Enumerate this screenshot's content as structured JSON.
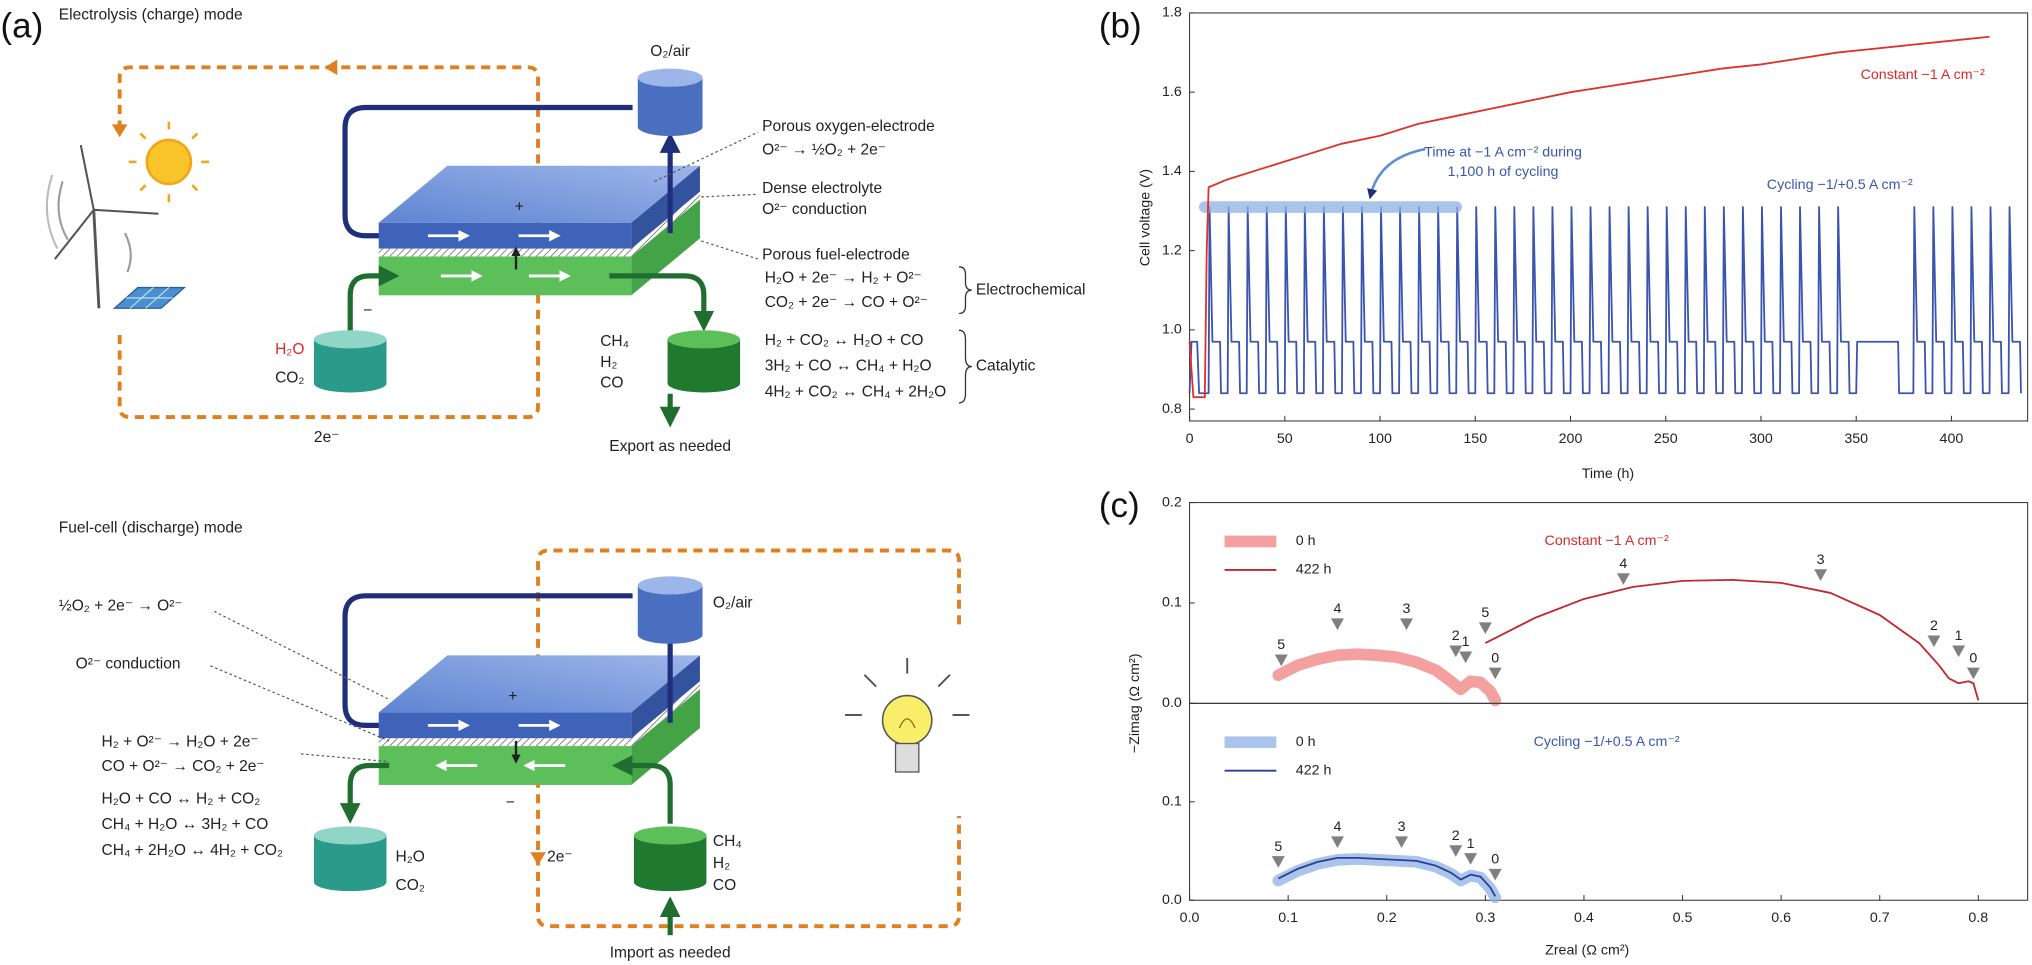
{
  "panel_labels": [
    "(a)",
    "(b)",
    "(c)"
  ],
  "electrolysis": {
    "title": "Electrolysis (charge) mode",
    "o2": "O₂/air",
    "oxygen_electrode": "Porous oxygen-electrode",
    "oxygen_reaction": "O²⁻ → ½O₂ + 2e⁻",
    "electrolyte": "Dense electrolyte",
    "conduction": "O²⁻ conduction",
    "fuel_electrode": "Porous fuel-electrode",
    "electrochemical": [
      "H₂O + 2e⁻ → H₂ + O²⁻",
      "CO₂ + 2e⁻ → CO + O²⁻"
    ],
    "electrochemical_label": "Electrochemical",
    "catalytic": [
      "H₂ + CO₂ ↔ H₂O + CO",
      "3H₂ + CO ↔ CH₄ + H₂O",
      "4H₂ + CO₂ ↔ CH₄ + 2H₂O"
    ],
    "catalytic_label": "Catalytic",
    "inputs": [
      "H₂O",
      "CO₂"
    ],
    "outputs": [
      "CH₄",
      "H₂",
      "CO"
    ],
    "export": "Export as needed",
    "electrons": "2e⁻",
    "plus": "+",
    "minus": "−"
  },
  "fuel_cell": {
    "title": "Fuel-cell (discharge) mode",
    "o2": "O₂/air",
    "reactions": [
      "½O₂ + 2e⁻ → O²⁻",
      "O²⁻ conduction",
      "H₂ + O²⁻ → H₂O + 2e⁻",
      "CO + O²⁻ → CO₂ + 2e⁻",
      "H₂O + CO ↔ H₂ + CO₂",
      "CH₄ + H₂O ↔ 3H₂ + CO",
      "CH₄ + 2H₂O ↔ 4H₂ + CO₂"
    ],
    "outputs": [
      "H₂O",
      "CO₂"
    ],
    "inputs": [
      "CH₄",
      "H₂",
      "CO"
    ],
    "import": "Import as needed",
    "electrons": "2e⁻",
    "plus": "+",
    "minus": "−"
  },
  "chart_data": [
    {
      "type": "line",
      "xlabel": "Time (h)",
      "ylabel": "Cell voltage (V)",
      "annotations": [
        "Constant −1 A cm⁻²",
        "Time at −1 A cm⁻² during",
        "1,100 h of cycling",
        "Cycling −1/+0.5 A cm⁻²"
      ],
      "xlim": [
        0,
        440
      ],
      "xticks": [
        0,
        50,
        100,
        150,
        200,
        250,
        300,
        350,
        400
      ],
      "ylim": [
        0.77,
        1.8
      ],
      "yticks": [
        0.8,
        {
          "value": 1,
          "label": "1.0"
        },
        1.2,
        1.4,
        1.6,
        1.8
      ],
      "series": [
        {
          "color": "#3a55b0",
          "x": [
            0,
            1,
            4,
            5,
            10,
            10.5,
            12,
            16,
            16.5,
            20,
            20.5,
            22,
            26,
            26.5,
            30,
            30.5,
            32,
            36,
            36.5,
            40,
            40.5,
            42,
            46,
            46.5,
            50,
            50.5,
            52,
            56,
            56.5,
            60,
            60.5,
            62,
            66,
            66.5,
            70,
            70.5,
            72,
            76,
            76.5,
            80,
            80.5,
            82,
            86,
            86.5,
            90,
            90.5,
            92,
            96,
            96.5,
            100,
            100.5,
            102,
            106,
            106.5,
            110,
            110.5,
            112,
            116,
            116.5,
            120,
            120.5,
            122,
            126,
            126.5,
            130,
            130.5,
            132,
            136,
            136.5,
            140,
            140.5,
            142,
            146,
            146.5,
            150,
            150.5,
            152,
            156,
            156.5,
            160,
            160.5,
            162,
            166,
            166.5,
            170,
            170.5,
            172,
            176,
            176.5,
            180,
            180.5,
            182,
            186,
            186.5,
            190,
            190.5,
            192,
            196,
            196.5,
            200,
            200.5,
            202,
            206,
            206.5,
            210,
            210.5,
            212,
            216,
            216.5,
            220,
            220.5,
            222,
            226,
            226.5,
            230,
            230.5,
            232,
            236,
            236.5,
            240,
            240.5,
            242,
            246,
            246.5,
            250,
            250.5,
            252,
            256,
            256.5,
            260,
            260.5,
            262,
            266,
            266.5,
            270,
            270.5,
            272,
            276,
            276.5,
            280,
            280.5,
            282,
            286,
            286.5,
            290,
            290.5,
            292,
            296,
            296.5,
            300,
            300.5,
            302,
            306,
            306.5,
            310,
            310.5,
            312,
            316,
            316.5,
            320,
            320.5,
            322,
            326,
            326.5,
            330,
            330.5,
            332,
            336,
            336.5,
            340,
            340.5,
            342,
            346,
            346.5,
            350,
            350.5,
            372,
            372.5,
            380,
            380.5,
            382,
            386,
            386.5,
            390,
            390.5,
            392,
            396,
            396.5,
            400,
            400.5,
            402,
            406,
            406.5,
            410,
            410.5,
            412,
            416,
            416.5,
            420,
            420.5,
            422,
            426,
            426.5,
            430,
            430.5,
            432,
            436,
            436.5
          ],
          "values": [
            0.84,
            0.97,
            0.97,
            0.84,
            0.84,
            1.31,
            0.97,
            0.97,
            0.84,
            0.84,
            1.31,
            0.97,
            0.97,
            0.84,
            0.84,
            1.31,
            0.97,
            0.97,
            0.84,
            0.84,
            1.31,
            0.97,
            0.97,
            0.84,
            0.84,
            1.31,
            0.97,
            0.97,
            0.84,
            0.84,
            1.31,
            0.97,
            0.97,
            0.84,
            0.84,
            1.31,
            0.97,
            0.97,
            0.84,
            0.84,
            1.31,
            0.97,
            0.97,
            0.84,
            0.84,
            1.31,
            0.97,
            0.97,
            0.84,
            0.84,
            1.31,
            0.97,
            0.97,
            0.84,
            0.84,
            1.31,
            0.97,
            0.97,
            0.84,
            0.84,
            1.31,
            0.97,
            0.97,
            0.84,
            0.84,
            1.31,
            0.97,
            0.97,
            0.84,
            0.84,
            1.31,
            0.97,
            0.97,
            0.84,
            0.84,
            1.31,
            0.97,
            0.97,
            0.84,
            0.84,
            1.31,
            0.97,
            0.97,
            0.84,
            0.84,
            1.31,
            0.97,
            0.97,
            0.84,
            0.84,
            1.31,
            0.97,
            0.97,
            0.84,
            0.84,
            1.31,
            0.97,
            0.97,
            0.84,
            0.84,
            1.31,
            0.97,
            0.97,
            0.84,
            0.84,
            1.31,
            0.97,
            0.97,
            0.84,
            0.84,
            1.31,
            0.97,
            0.97,
            0.84,
            0.84,
            1.31,
            0.97,
            0.97,
            0.84,
            0.84,
            1.31,
            0.97,
            0.97,
            0.84,
            0.84,
            1.31,
            0.97,
            0.97,
            0.84,
            0.84,
            1.31,
            0.97,
            0.97,
            0.84,
            0.84,
            1.31,
            0.97,
            0.97,
            0.84,
            0.84,
            1.31,
            0.97,
            0.97,
            0.84,
            0.84,
            1.31,
            0.97,
            0.97,
            0.84,
            0.84,
            1.31,
            0.97,
            0.97,
            0.84,
            0.84,
            1.31,
            0.97,
            0.97,
            0.84,
            0.84,
            1.31,
            0.97,
            0.97,
            0.84,
            0.84,
            1.31,
            0.97,
            0.97,
            0.84,
            0.84,
            1.31,
            0.97,
            0.97,
            0.84,
            0.84,
            0.97,
            0.97,
            0.84,
            0.84,
            1.31,
            0.97,
            0.97,
            0.84,
            0.84,
            1.31,
            0.97,
            0.97,
            0.84,
            0.84,
            1.31,
            0.97,
            0.97,
            0.84,
            0.84,
            1.31,
            0.97,
            0.97,
            0.84,
            0.84,
            1.31,
            0.97,
            0.97,
            0.84,
            0.84,
            1.31,
            0.97,
            0.97,
            0.84
          ]
        },
        {
          "color": "#8fb0e6",
          "style": "thick",
          "x": [
            8,
            140
          ],
          "values": [
            1.31,
            1.31
          ]
        },
        {
          "color": "#e0302a",
          "x": [
            0,
            2,
            8,
            9,
            10,
            20,
            40,
            60,
            80,
            100,
            120,
            140,
            160,
            180,
            200,
            220,
            240,
            260,
            280,
            300,
            320,
            340,
            360,
            380,
            400,
            420
          ],
          "values": [
            0.97,
            0.83,
            0.83,
            1.2,
            1.36,
            1.38,
            1.41,
            1.44,
            1.47,
            1.49,
            1.52,
            1.54,
            1.56,
            1.58,
            1.6,
            1.615,
            1.63,
            1.645,
            1.66,
            1.67,
            1.685,
            1.7,
            1.71,
            1.72,
            1.73,
            1.74
          ]
        }
      ]
    },
    {
      "type": "line",
      "ylabel": "−Zimag (Ω cm²)",
      "annotations": [
        "Constant −1 A cm⁻²"
      ],
      "legend": "upper left",
      "xlim": [
        0,
        0.85
      ],
      "ylim": [
        0,
        0.2
      ],
      "yticks": [
        {
          "value": 0,
          "label": "0.0"
        },
        0.1,
        0.2
      ],
      "series": [
        {
          "name": "0 h",
          "color": "#f08080",
          "style": "thick",
          "x": [
            0.09,
            0.11,
            0.13,
            0.15,
            0.17,
            0.19,
            0.21,
            0.23,
            0.25,
            0.265,
            0.275,
            0.285,
            0.295,
            0.305,
            0.31
          ],
          "values": [
            0.028,
            0.038,
            0.044,
            0.048,
            0.049,
            0.048,
            0.046,
            0.041,
            0.033,
            0.022,
            0.014,
            0.022,
            0.021,
            0.012,
            0.003
          ]
        },
        {
          "name": "422 h",
          "color": "#c0282d",
          "x": [
            0.3,
            0.32,
            0.35,
            0.4,
            0.45,
            0.5,
            0.55,
            0.6,
            0.65,
            0.7,
            0.74,
            0.76,
            0.77,
            0.78,
            0.79,
            0.795,
            0.8
          ],
          "values": [
            0.06,
            0.07,
            0.085,
            0.104,
            0.116,
            0.122,
            0.123,
            0.12,
            0.11,
            0.088,
            0.06,
            0.038,
            0.025,
            0.02,
            0.022,
            0.02,
            0.003
          ]
        }
      ],
      "markers": [
        {
          "text": "5",
          "x": 0.093,
          "y": 0.037
        },
        {
          "text": "4",
          "x": 0.15,
          "y": 0.073
        },
        {
          "text": "3",
          "x": 0.22,
          "y": 0.073
        },
        {
          "text": "2",
          "x": 0.27,
          "y": 0.046
        },
        {
          "text": "1",
          "x": 0.28,
          "y": 0.04
        },
        {
          "text": "0",
          "x": 0.31,
          "y": 0.024
        },
        {
          "text": "5",
          "x": 0.3,
          "y": 0.069
        },
        {
          "text": "4",
          "x": 0.44,
          "y": 0.118
        },
        {
          "text": "3",
          "x": 0.64,
          "y": 0.122
        },
        {
          "text": "2",
          "x": 0.755,
          "y": 0.056
        },
        {
          "text": "1",
          "x": 0.78,
          "y": 0.046
        },
        {
          "text": "0",
          "x": 0.795,
          "y": 0.024
        }
      ]
    },
    {
      "type": "line",
      "xlabel": "Zreal (Ω cm²)",
      "annotations": [
        "Cycling −1/+0.5 A cm⁻²"
      ],
      "legend": "upper left",
      "xlim": [
        0,
        0.85
      ],
      "xticks": [
        {
          "value": 0,
          "label": "0.0"
        },
        0.1,
        0.2,
        0.3,
        0.4,
        0.5,
        0.6,
        0.7,
        0.8
      ],
      "ylim": [
        0,
        0.2
      ],
      "yticks": [
        {
          "value": 0,
          "label": "0.0"
        },
        0.1
      ],
      "series": [
        {
          "name": "0 h",
          "color": "#8fb0e6",
          "style": "thick",
          "x": [
            0.09,
            0.11,
            0.13,
            0.15,
            0.17,
            0.19,
            0.21,
            0.23,
            0.25,
            0.265,
            0.275,
            0.285,
            0.295,
            0.305,
            0.31
          ],
          "values": [
            0.02,
            0.03,
            0.037,
            0.041,
            0.042,
            0.041,
            0.04,
            0.039,
            0.034,
            0.027,
            0.02,
            0.025,
            0.023,
            0.012,
            0.003
          ]
        },
        {
          "name": "422 h",
          "color": "#2c3f96",
          "x": [
            0.09,
            0.11,
            0.13,
            0.15,
            0.17,
            0.19,
            0.21,
            0.23,
            0.25,
            0.265,
            0.275,
            0.285,
            0.295,
            0.305,
            0.31
          ],
          "values": [
            0.022,
            0.032,
            0.039,
            0.043,
            0.043,
            0.042,
            0.041,
            0.04,
            0.035,
            0.028,
            0.021,
            0.026,
            0.024,
            0.013,
            0.004
          ]
        }
      ],
      "markers": [
        {
          "text": "5",
          "x": 0.09,
          "y": 0.033
        },
        {
          "text": "4",
          "x": 0.15,
          "y": 0.053
        },
        {
          "text": "3",
          "x": 0.215,
          "y": 0.053
        },
        {
          "text": "2",
          "x": 0.27,
          "y": 0.044
        },
        {
          "text": "1",
          "x": 0.285,
          "y": 0.036
        },
        {
          "text": "0",
          "x": 0.31,
          "y": 0.02
        }
      ]
    }
  ]
}
